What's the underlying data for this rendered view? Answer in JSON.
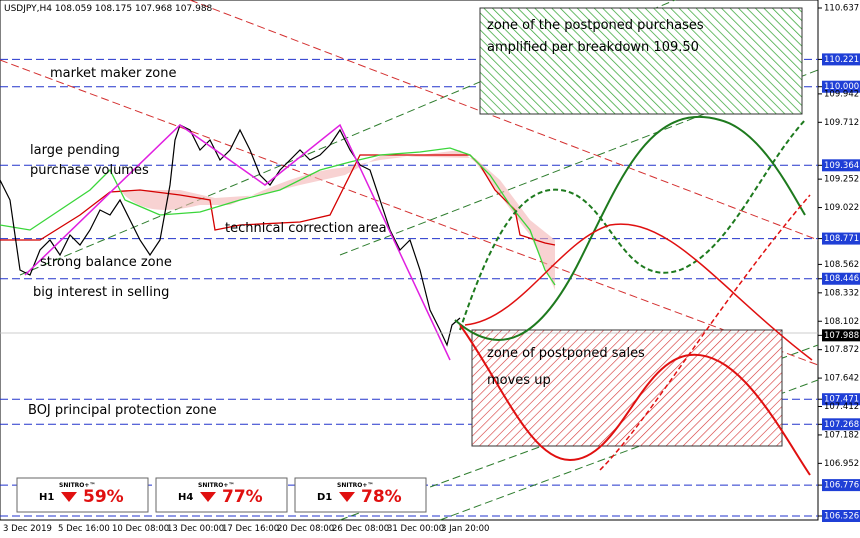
{
  "header": "USDJPY,H4  108.059 108.175 107.968 107.988",
  "price_axis": [
    {
      "label": "110.637"
    },
    {
      "label": "110.221",
      "mark": "level"
    },
    {
      "label": "110.000",
      "mark": "level"
    },
    {
      "label": "109.942"
    },
    {
      "label": "109.712"
    },
    {
      "label": "109.364",
      "mark": "level"
    },
    {
      "label": "109.252"
    },
    {
      "label": "109.022"
    },
    {
      "label": "108.771",
      "mark": "level"
    },
    {
      "label": "108.562"
    },
    {
      "label": "108.446",
      "mark": "level"
    },
    {
      "label": "108.332"
    },
    {
      "label": "108.102"
    },
    {
      "label": "107.988",
      "mark": "current"
    },
    {
      "label": "107.872"
    },
    {
      "label": "107.642"
    },
    {
      "label": "107.471",
      "mark": "level"
    },
    {
      "label": "107.412"
    },
    {
      "label": "107.268",
      "mark": "level"
    },
    {
      "label": "107.182"
    },
    {
      "label": "106.952"
    },
    {
      "label": "106.776",
      "mark": "level"
    },
    {
      "label": "106.526",
      "mark": "level"
    }
  ],
  "dates": [
    "3 Dec 2019",
    "5 Dec 16:00",
    "10 Dec 08:00",
    "13 Dec 00:00",
    "17 Dec 16:00",
    "20 Dec 08:00",
    "26 Dec 08:00",
    "31 Dec 00:00",
    "3 Jan 20:00"
  ],
  "annotations": {
    "market_maker": "market maker zone",
    "pending_1": "large pending",
    "pending_2": "purchase volumes",
    "correction": "technical correction area",
    "balance": "strong balance zone",
    "selling": "big interest in selling",
    "boj": "BOJ principal protection zone",
    "purchases_1": "zone of the postponed purchases",
    "purchases_2": "amplified per breakdown 109.50",
    "sales": "zone of postponed sales",
    "moves_up": "moves up"
  },
  "widgets": [
    {
      "timeframe": "H1",
      "brand": "SNITRO+™",
      "percent": "59%"
    },
    {
      "timeframe": "H4",
      "brand": "SNITRO+™",
      "percent": "77%"
    },
    {
      "timeframe": "D1",
      "brand": "SNITRO+™",
      "percent": "78%"
    }
  ]
}
